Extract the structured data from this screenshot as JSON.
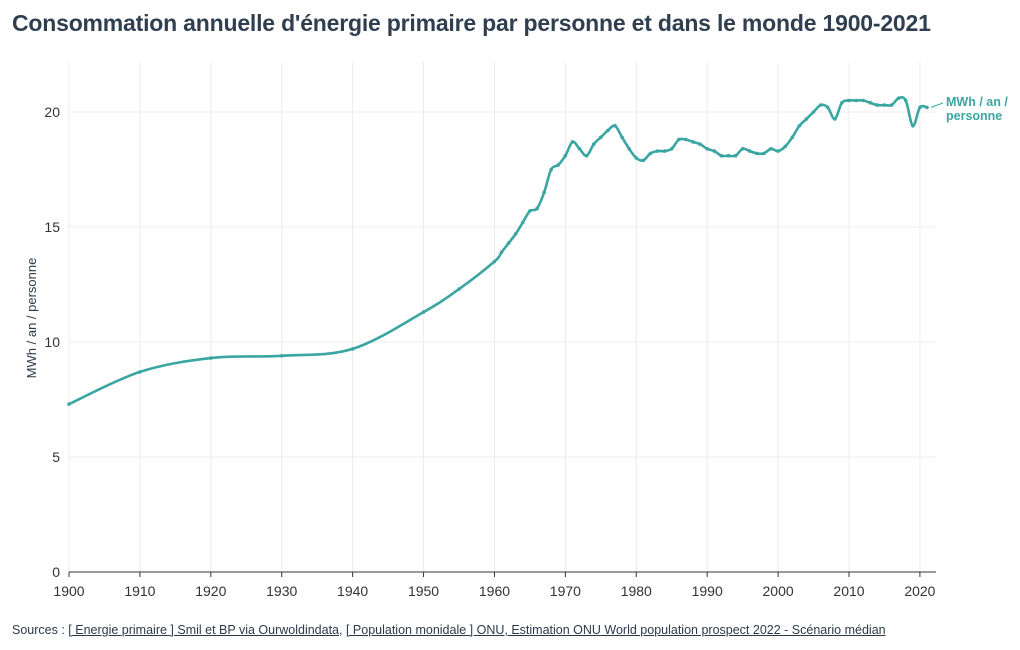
{
  "title": "Consommation annuelle d'énergie primaire par personne et dans le monde 1900-2021",
  "sources": {
    "prefix": "Sources : ",
    "link1": "[ Energie primaire ] Smil et BP via Ourwoldindata",
    "sep": ", ",
    "link2": "[ Population monidale ] ONU, Estimation ONU World population prospect 2022 - Scénario médian"
  },
  "colors": {
    "line": "#3aa6a2",
    "grid": "#ececec",
    "axis": "#333333"
  },
  "chart_data": {
    "type": "line",
    "ylabel": "MWh / an / personne",
    "xlabel": "",
    "end_label": [
      "MWh / an /",
      "personne"
    ],
    "xlim": [
      1900,
      2021
    ],
    "ylim": [
      0,
      22
    ],
    "x_ticks": [
      1900,
      1910,
      1920,
      1930,
      1940,
      1950,
      1960,
      1970,
      1980,
      1990,
      2000,
      2010,
      2020
    ],
    "y_ticks": [
      0,
      5,
      10,
      15,
      20
    ],
    "grid": true,
    "series": [
      {
        "x": [
          1900,
          1910,
          1920,
          1930,
          1940,
          1950,
          1955,
          1960,
          1961,
          1962,
          1963,
          1964,
          1965,
          1966,
          1967,
          1968,
          1969,
          1970,
          1971,
          1972,
          1973,
          1974,
          1975,
          1976,
          1977,
          1978,
          1979,
          1980,
          1981,
          1982,
          1983,
          1984,
          1985,
          1986,
          1987,
          1988,
          1989,
          1990,
          1991,
          1992,
          1993,
          1994,
          1995,
          1996,
          1997,
          1998,
          1999,
          2000,
          2001,
          2002,
          2003,
          2004,
          2005,
          2006,
          2007,
          2008,
          2009,
          2010,
          2011,
          2012,
          2013,
          2014,
          2015,
          2016,
          2017,
          2018,
          2019,
          2020,
          2021
        ],
        "y": [
          7.3,
          8.7,
          9.3,
          9.4,
          9.7,
          11.3,
          12.3,
          13.5,
          13.9,
          14.3,
          14.7,
          15.2,
          15.7,
          15.8,
          16.5,
          17.5,
          17.7,
          18.1,
          18.7,
          18.4,
          18.1,
          18.6,
          18.9,
          19.2,
          19.4,
          18.9,
          18.4,
          18.0,
          17.9,
          18.2,
          18.3,
          18.3,
          18.4,
          18.8,
          18.8,
          18.7,
          18.6,
          18.4,
          18.3,
          18.1,
          18.1,
          18.1,
          18.4,
          18.3,
          18.2,
          18.2,
          18.4,
          18.3,
          18.5,
          18.9,
          19.4,
          19.7,
          20.0,
          20.3,
          20.2,
          19.7,
          20.4,
          20.5,
          20.5,
          20.5,
          20.4,
          20.3,
          20.3,
          20.3,
          20.6,
          20.5,
          19.4,
          20.2,
          20.2
        ]
      }
    ]
  }
}
